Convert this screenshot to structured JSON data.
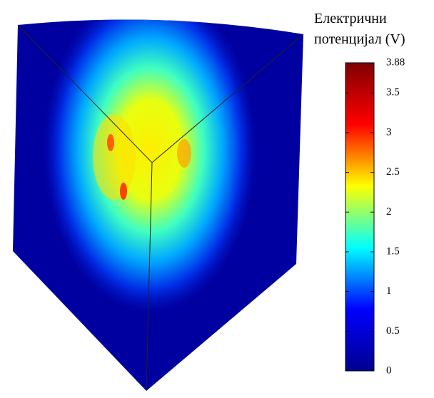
{
  "chart_data": {
    "type": "colorbar",
    "title": "Електрични потенцијал (V)",
    "colormap": "jet",
    "clim": [
      0,
      3.88
    ],
    "cticks": [
      0,
      0.5,
      1,
      1.5,
      2,
      2.5,
      3,
      3.5,
      3.88
    ]
  }
}
